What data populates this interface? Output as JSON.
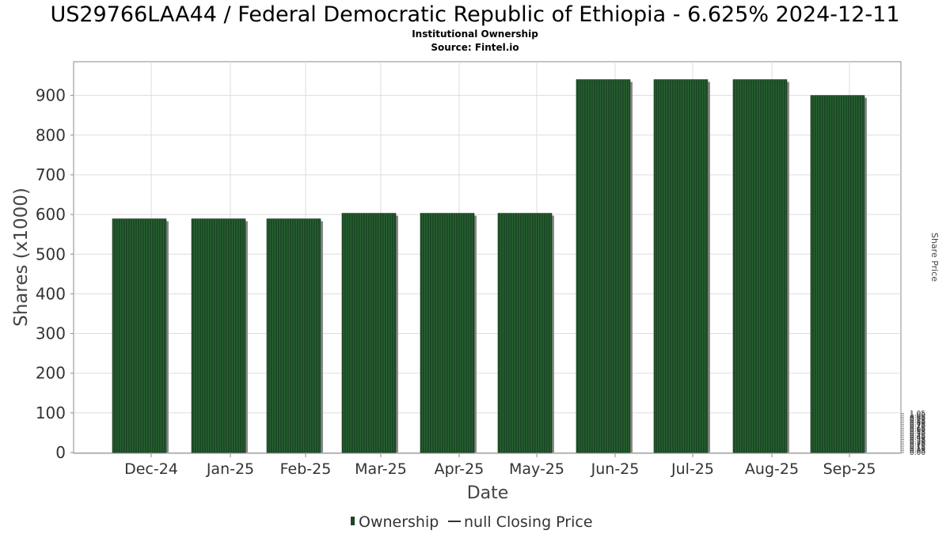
{
  "chart_data": {
    "type": "bar",
    "title": "US29766LAA44 / Federal Democratic Republic of Ethiopia - 6.625% 2024-12-11",
    "subtitle": "Institutional Ownership",
    "source": "Source: Fintel.io",
    "xlabel": "Date",
    "ylabel": "Shares (x1000)",
    "ylabel_right": "Share Price",
    "categories": [
      "Dec-24",
      "Jan-25",
      "Feb-25",
      "Mar-25",
      "Apr-25",
      "May-25",
      "Jun-25",
      "Jul-25",
      "Aug-25",
      "Sep-25"
    ],
    "series": [
      {
        "name": "Ownership",
        "values": [
          589,
          589,
          589,
          603,
          603,
          603,
          940,
          940,
          940,
          900
        ]
      }
    ],
    "ylim": [
      0,
      1000
    ],
    "yticks": [
      "0",
      "100",
      "200",
      "300",
      "400",
      "500",
      "600",
      "700",
      "800",
      "900"
    ],
    "ylim_right": [
      0,
      1.05
    ],
    "yticks_right": [
      "0.00",
      "0.05",
      "0.10",
      "0.15",
      "0.20",
      "0.25",
      "0.30",
      "0.35",
      "0.40",
      "0.45",
      "0.50",
      "0.55",
      "0.60",
      "0.65",
      "0.70",
      "0.75",
      "0.80",
      "0.85",
      "0.90",
      "0.95",
      "1.00",
      "1.05"
    ],
    "grid": true,
    "legend": [
      {
        "label": "Ownership",
        "marker": "bar"
      },
      {
        "label": "null Closing Price",
        "marker": "line"
      }
    ],
    "legend_position": "bottom",
    "colors": {
      "bar": "#1a4723",
      "bar_stripe": "#2a6b35",
      "bar_shadow": "#8a8a8a",
      "grid": "#dddddd",
      "frame": "#888888"
    }
  }
}
